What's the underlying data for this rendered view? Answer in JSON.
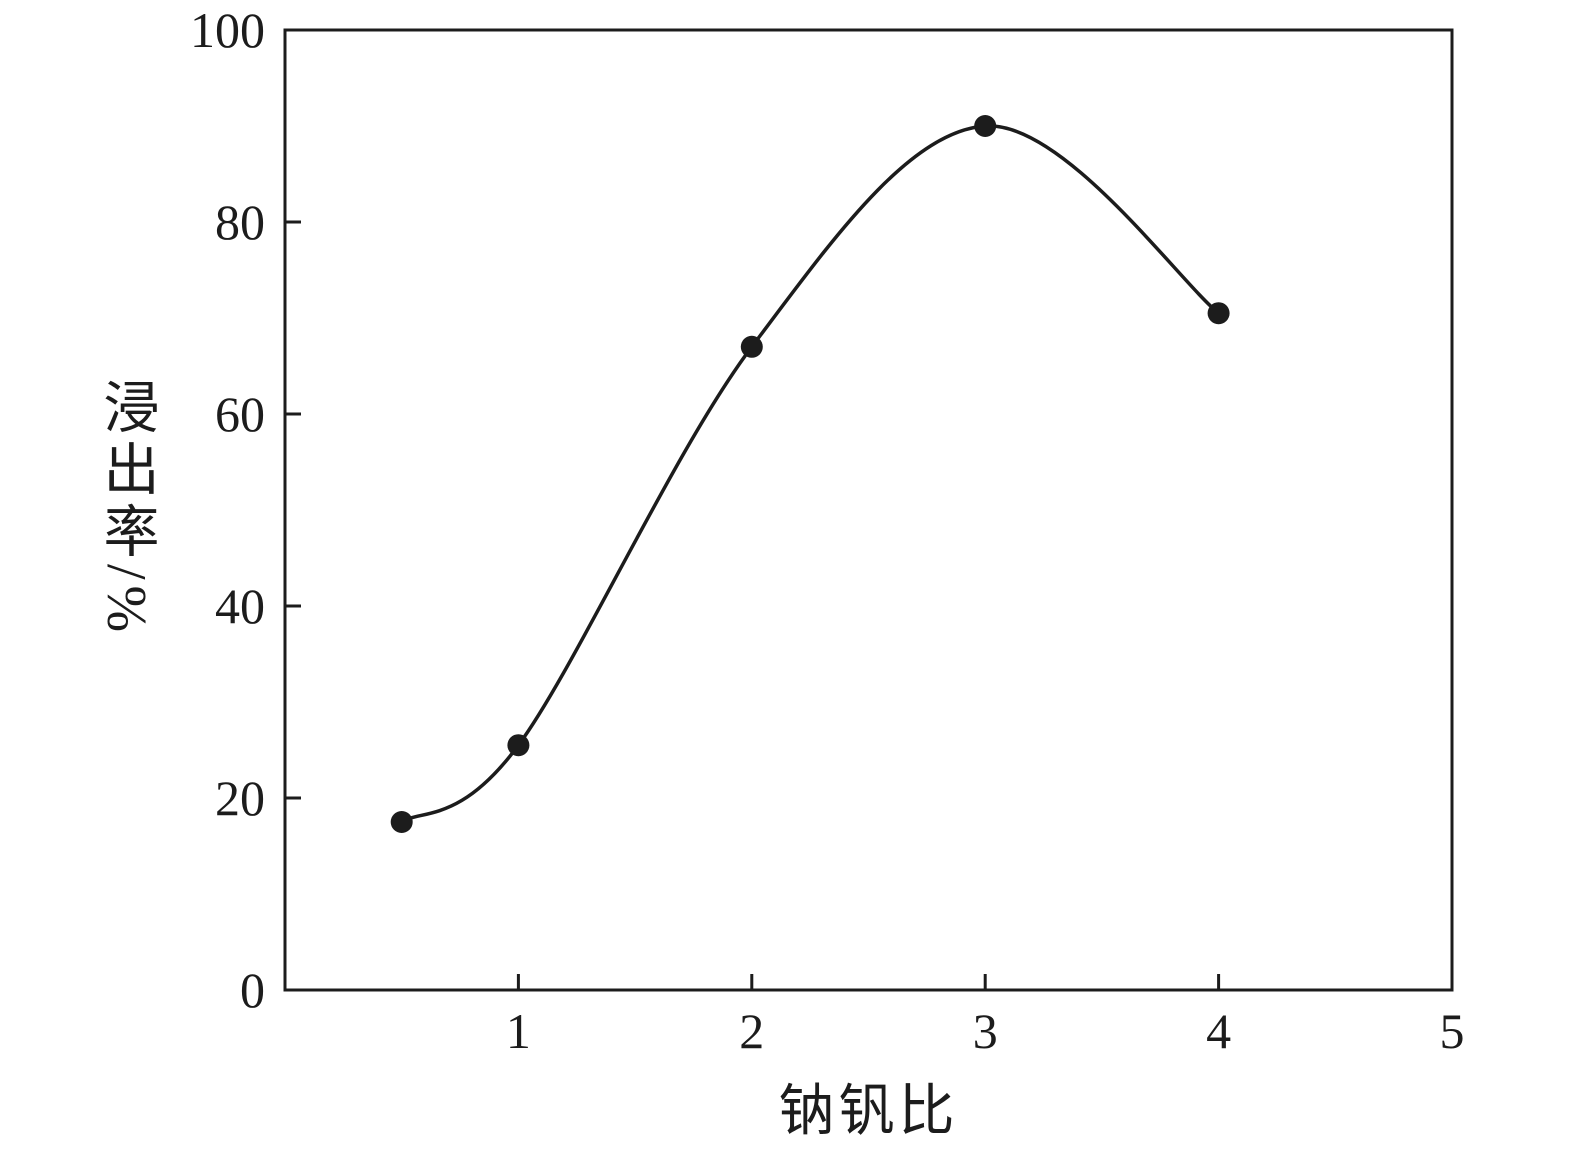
{
  "chart_data": {
    "type": "line",
    "x": [
      0.5,
      1,
      2,
      3,
      4
    ],
    "y": [
      17.5,
      25.5,
      67,
      90,
      70.5
    ],
    "series": [
      {
        "name": "浸出率",
        "x": [
          0.5,
          1,
          2,
          3,
          4
        ],
        "values": [
          17.5,
          25.5,
          67,
          90,
          70.5
        ]
      }
    ],
    "title": "",
    "xlabel": "钠钒比",
    "ylabel": "浸出率/%",
    "xlim": [
      0,
      5
    ],
    "ylim": [
      0,
      100
    ],
    "xticks": [
      1,
      2,
      3,
      4,
      5
    ],
    "yticks": [
      0,
      20,
      40,
      60,
      80,
      100
    ],
    "grid": "off",
    "legend": "none",
    "marker": "filled-circle",
    "line_style": "smooth-spline",
    "line_color": "#1c1c1c",
    "marker_color": "#1c1c1c",
    "axis_color": "#1c1c1c",
    "background": "#ffffff"
  }
}
